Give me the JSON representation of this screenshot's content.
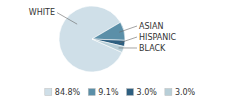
{
  "chart_data": {
    "type": "pie",
    "categories": [
      "WHITE",
      "ASIAN",
      "HISPANIC",
      "BLACK"
    ],
    "values": [
      84.8,
      9.1,
      3.0,
      3.0
    ],
    "value_labels": [
      "84.8%",
      "9.1%",
      "3.0%",
      "3.0%"
    ],
    "colors": [
      "#cfdfe8",
      "#5b8fa8",
      "#2e5f80",
      "#b8cfd8"
    ],
    "legend": "bottom"
  }
}
